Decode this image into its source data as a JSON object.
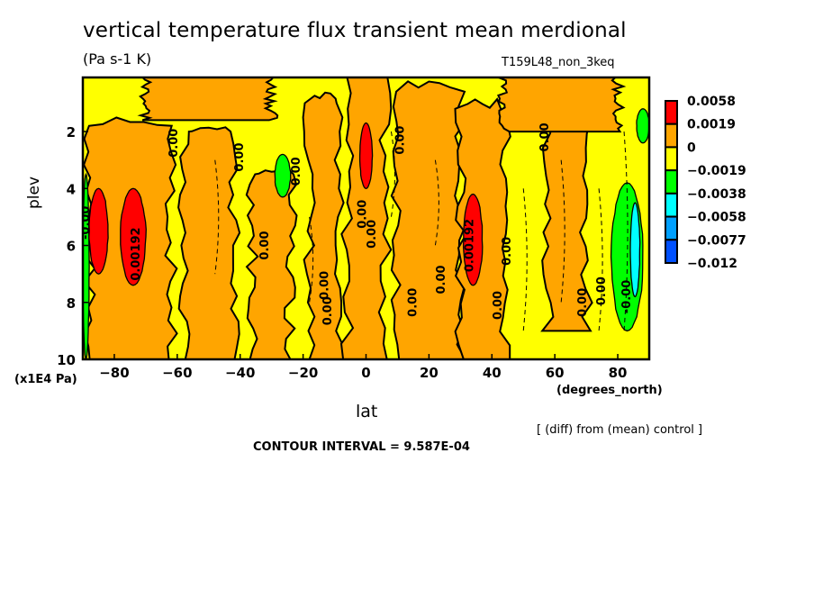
{
  "chart_data": {
    "type": "heatmap",
    "subtype": "filled-contour",
    "title": "vertical temperature flux transient mean merdional",
    "units": "(Pa s-1 K)",
    "run_label": "T159L48_non_3keq",
    "xlabel": "lat",
    "x_units": "(degrees_north)",
    "ylabel": "plev",
    "y_units": "(x1E4 Pa)",
    "xlim": [
      -90,
      90
    ],
    "ylim": [
      10,
      0.1
    ],
    "y_inverted": true,
    "x_ticks": [
      -80,
      -60,
      -40,
      -20,
      0,
      20,
      40,
      60,
      80
    ],
    "y_ticks": [
      2,
      4,
      6,
      8,
      10
    ],
    "footer_note": "[ (diff) from (mean) control ]",
    "contour_interval_text": "CONTOUR INTERVAL = 9.587E-04",
    "contour_interval": 0.0009587,
    "legend": {
      "position": "right",
      "levels": [
        "0.0058",
        "0.0019",
        "0",
        "−0.0019",
        "−0.0038",
        "−0.0058",
        "−0.0077",
        "−0.012"
      ],
      "colors": [
        "#ff0000",
        "#ffa500",
        "#ffff00",
        "#00ff00",
        "#00ffff",
        "#00a0ff",
        "#0050ff"
      ]
    },
    "background_level_color": "#ffff00",
    "features": [
      {
        "name": "orange-band-sh-polar",
        "color": "#ffa500",
        "lat": [
          -88,
          -62
        ],
        "plev": [
          1.8,
          10
        ]
      },
      {
        "name": "orange-band-sh-mid",
        "color": "#ffa500",
        "lat": [
          -58,
          -42
        ],
        "plev": [
          2.0,
          10
        ]
      },
      {
        "name": "orange-band-sh-sub",
        "color": "#ffa500",
        "lat": [
          -36,
          -24
        ],
        "plev": [
          3.5,
          10
        ]
      },
      {
        "name": "orange-band-sh-trop",
        "color": "#ffa500",
        "lat": [
          -18,
          -8
        ],
        "plev": [
          1.0,
          10
        ]
      },
      {
        "name": "orange-band-eq",
        "color": "#ffa500",
        "lat": [
          -6,
          6
        ],
        "plev": [
          0.1,
          10
        ]
      },
      {
        "name": "orange-band-nh-sub",
        "color": "#ffa500",
        "lat": [
          10,
          30
        ],
        "plev": [
          0.6,
          10
        ]
      },
      {
        "name": "orange-band-nh-mid",
        "color": "#ffa500",
        "lat": [
          30,
          44
        ],
        "plev": [
          1.2,
          10
        ]
      },
      {
        "name": "orange-band-nh-60",
        "color": "#ffa500",
        "lat": [
          58,
          70
        ],
        "plev": [
          0.1,
          9
        ]
      },
      {
        "name": "orange-top-nh",
        "color": "#ffa500",
        "lat": [
          44,
          80
        ],
        "plev": [
          0.1,
          2.0
        ]
      },
      {
        "name": "orange-top-sh",
        "color": "#ffa500",
        "lat": [
          -70,
          -30
        ],
        "plev": [
          0.1,
          1.6
        ]
      },
      {
        "name": "red-blob-sh-polar",
        "color": "#ff0000",
        "lat": [
          -88,
          -82
        ],
        "plev": [
          4.0,
          7.0
        ]
      },
      {
        "name": "red-blob-sh-70",
        "color": "#ff0000",
        "lat": [
          -78,
          -70
        ],
        "plev": [
          4.0,
          7.4
        ]
      },
      {
        "name": "red-blob-eq",
        "color": "#ff0000",
        "lat": [
          -2,
          2
        ],
        "plev": [
          1.7,
          4.0
        ]
      },
      {
        "name": "red-blob-nh-35",
        "color": "#ff0000",
        "lat": [
          31,
          37
        ],
        "plev": [
          4.2,
          7.4
        ]
      },
      {
        "name": "green-blob-sh-25",
        "color": "#00ff00",
        "lat": [
          -29,
          -24
        ],
        "plev": [
          2.8,
          4.3
        ]
      },
      {
        "name": "green-band-nh-polar",
        "color": "#00ff00",
        "lat": [
          78,
          88
        ],
        "plev": [
          3.8,
          9.0
        ]
      },
      {
        "name": "green-patch-nh-top",
        "color": "#00ff00",
        "lat": [
          86,
          90
        ],
        "plev": [
          1.2,
          2.4
        ]
      },
      {
        "name": "cyan-streak-nh-polar",
        "color": "#00ffff",
        "lat": [
          84,
          87
        ],
        "plev": [
          4.5,
          7.8
        ]
      },
      {
        "name": "green-streak-sh-edge",
        "color": "#00ff00",
        "lat": [
          -90,
          -88
        ],
        "plev": [
          3.5,
          10
        ]
      }
    ],
    "contour_labels": [
      {
        "text": "0.00",
        "lat": -60,
        "plev": 2.4
      },
      {
        "text": "0.00",
        "lat": -39,
        "plev": 2.9
      },
      {
        "text": "0.00",
        "lat": -31,
        "plev": 6.0
      },
      {
        "text": "0.00",
        "lat": -12,
        "plev": 7.4
      },
      {
        "text": "0.00",
        "lat": -11,
        "plev": 8.3
      },
      {
        "text": "0.00",
        "lat": -21,
        "plev": 3.4
      },
      {
        "text": "0.00",
        "lat": 0,
        "plev": 4.9
      },
      {
        "text": "0.00",
        "lat": 3,
        "plev": 5.6
      },
      {
        "text": "0.00",
        "lat": 12,
        "plev": 2.3
      },
      {
        "text": "0.00",
        "lat": 16,
        "plev": 8.0
      },
      {
        "text": "0.00",
        "lat": 25,
        "plev": 7.2
      },
      {
        "text": "0.00192",
        "lat": 34,
        "plev": 6.0
      },
      {
        "text": "0.00",
        "lat": 43,
        "plev": 8.1
      },
      {
        "text": "0.00",
        "lat": 46,
        "plev": 6.2
      },
      {
        "text": "0.00",
        "lat": 58,
        "plev": 2.2
      },
      {
        "text": "0.00",
        "lat": 70,
        "plev": 8.0
      },
      {
        "text": "0.00",
        "lat": 76,
        "plev": 7.6
      },
      {
        "text": "0.00192",
        "lat": -72,
        "plev": 6.3
      },
      {
        "text": "-0.00",
        "lat": -88,
        "plev": 5.2
      },
      {
        "text": "-0.00",
        "lat": 84,
        "plev": 7.8
      }
    ]
  }
}
